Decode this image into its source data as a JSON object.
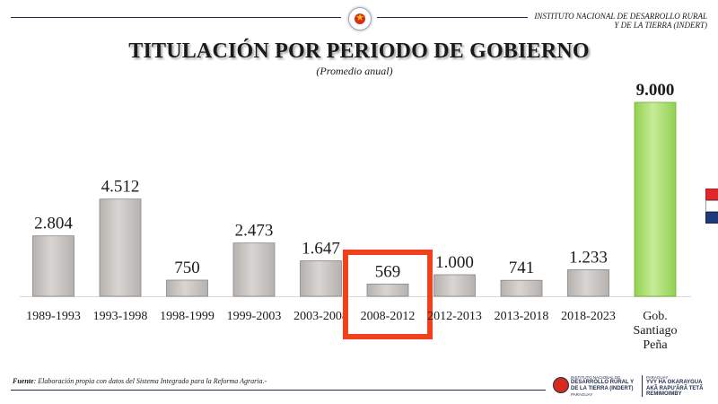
{
  "header": {
    "org_line1": "INSTITUTO NACIONAL DE DESARROLLO RURAL",
    "org_line2": "Y DE LA TIERRA (INDERT)",
    "seal_icon": "coat-of-arms-icon"
  },
  "footer": {
    "source_label": "Fuente",
    "source_text": ": Elaboración propia con datos del Sistema Integrado para la Reforma Agraria.-",
    "logo1_small": "INSTITUTO NACIONAL DE",
    "logo1_line1": "DESARROLLO RURAL Y",
    "logo1_line2": "DE LA TIERRA (INDERT)",
    "logo1_line3": "PARAGUAY",
    "logo2_small": "PARAGUAY",
    "logo2_line1": "YVY HA OKARAYGUA",
    "logo2_line2": "AKÃ RAPU'ÃRÃ TETÃ",
    "logo2_line3": "REMIMOIMBY"
  },
  "colors": {
    "bar_gray": "#b5b1ae",
    "bar_gray_light": "#d8d5d2",
    "bar_green": "#92d050",
    "bar_green_light": "#c7ec99",
    "highlight": "#f0401c",
    "flag_red": "#e3262b",
    "flag_white": "#ffffff",
    "flag_blue": "#1f3a7a"
  },
  "chart_data": {
    "type": "bar",
    "title": "TITULACIÓN POR PERIODO DE GOBIERNO",
    "subtitle": "(Promedio anual)",
    "categories": [
      "1989-1993",
      "1993-1998",
      "1998-1999",
      "1999-2003",
      "2003-2008",
      "2008-2012",
      "2012-2013",
      "2013-2018",
      "2018-2023",
      "Gob. Santiago Peña"
    ],
    "category_lines": [
      [
        "1989-1993"
      ],
      [
        "1993-1998"
      ],
      [
        "1998-1999"
      ],
      [
        "1999-2003"
      ],
      [
        "2003-2008"
      ],
      [
        "2008-2012"
      ],
      [
        "2012-2013"
      ],
      [
        "2013-2018"
      ],
      [
        "2018-2023"
      ],
      [
        "Gob.",
        "Santiago",
        "Peña"
      ]
    ],
    "values": [
      2804,
      4512,
      750,
      2473,
      1647,
      569,
      1000,
      741,
      1233,
      9000
    ],
    "value_labels": [
      "2.804",
      "4.512",
      "750",
      "2.473",
      "1.647",
      "569",
      "1.000",
      "741",
      "1.233",
      "9.000"
    ],
    "emphasized_index": 9,
    "highlighted_index": 5,
    "ylim": [
      0,
      9000
    ],
    "grid": false,
    "legend": "none"
  }
}
